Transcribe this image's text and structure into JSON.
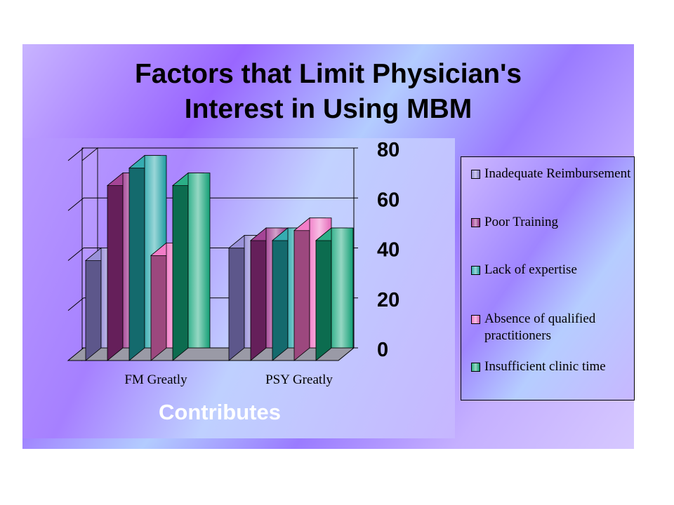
{
  "chart_data": {
    "type": "bar",
    "title": [
      "Factors that Limit Physician's",
      "Interest in Using MBM"
    ],
    "xlabel": "Contributes",
    "ylabel": "",
    "categories": [
      "FM Greatly",
      "PSY Greatly"
    ],
    "series": [
      {
        "name": "Inadequate Reimbursement",
        "values": [
          40,
          45
        ],
        "color": "#8f86d6"
      },
      {
        "name": "Poor Training",
        "values": [
          70,
          48
        ],
        "color": "#9b2f8a"
      },
      {
        "name": "Lack of expertise",
        "values": [
          77,
          48
        ],
        "color": "#1fa3a8"
      },
      {
        "name": "Absence of qualified practitioners",
        "values": [
          42,
          52
        ],
        "color": "#f06ec2"
      },
      {
        "name": "Insufficient clinic time",
        "values": [
          70,
          48
        ],
        "color": "#13a67a"
      }
    ],
    "ylim": [
      0,
      80
    ],
    "yticks": [
      "0",
      "20",
      "40",
      "60",
      "80"
    ],
    "grid": true,
    "legend": "right"
  }
}
